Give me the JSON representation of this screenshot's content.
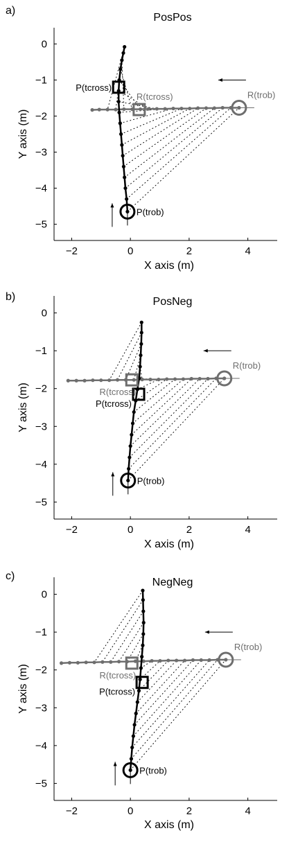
{
  "colors": {
    "pedestrian": "#000000",
    "robot": "#6e6e6e",
    "axis": "#000000",
    "hatch": "#000000"
  },
  "chart_data": [
    {
      "type": "scatter",
      "panel_letter": "a)",
      "title": "PosPos",
      "xlabel": "X axis (m)",
      "ylabel": "Y axis (m)",
      "xlim": [
        -2.6,
        5.0
      ],
      "ylim": [
        -5.45,
        0.45
      ],
      "xticks": [
        -2,
        0,
        2,
        4
      ],
      "yticks": [
        0,
        -1,
        -2,
        -3,
        -4,
        -5
      ],
      "pedestrian": {
        "points": [
          [
            -0.1,
            -4.65
          ],
          [
            -0.13,
            -4.3
          ],
          [
            -0.17,
            -4.0
          ],
          [
            -0.2,
            -3.7
          ],
          [
            -0.23,
            -3.4
          ],
          [
            -0.26,
            -3.1
          ],
          [
            -0.29,
            -2.8
          ],
          [
            -0.32,
            -2.5
          ],
          [
            -0.35,
            -2.2
          ],
          [
            -0.38,
            -1.9
          ],
          [
            -0.4,
            -1.6
          ],
          [
            -0.4,
            -1.3
          ],
          [
            -0.38,
            -1.0
          ],
          [
            -0.34,
            -0.7
          ],
          [
            -0.29,
            -0.45
          ],
          [
            -0.24,
            -0.25
          ],
          [
            -0.2,
            -0.08
          ]
        ],
        "start": [
          -0.1,
          -4.65
        ],
        "cross": [
          -0.4,
          -1.2
        ],
        "start_label": "P(trob)",
        "cross_label": "P(tcross)"
      },
      "robot": {
        "points": [
          [
            3.7,
            -1.77
          ],
          [
            3.42,
            -1.77
          ],
          [
            3.14,
            -1.77
          ],
          [
            2.86,
            -1.78
          ],
          [
            2.58,
            -1.78
          ],
          [
            2.3,
            -1.78
          ],
          [
            2.02,
            -1.79
          ],
          [
            1.74,
            -1.79
          ],
          [
            1.46,
            -1.79
          ],
          [
            1.18,
            -1.8
          ],
          [
            0.9,
            -1.8
          ],
          [
            0.62,
            -1.8
          ],
          [
            0.34,
            -1.81
          ],
          [
            0.06,
            -1.81
          ],
          [
            -0.22,
            -1.81
          ],
          [
            -0.5,
            -1.82
          ],
          [
            -0.78,
            -1.82
          ],
          [
            -1.06,
            -1.82
          ],
          [
            -1.3,
            -1.83
          ]
        ],
        "start": [
          3.7,
          -1.77
        ],
        "cross": [
          0.3,
          -1.82
        ],
        "start_label": "R(trob)",
        "cross_label": "R(tcross)"
      },
      "hatch_pairs": 14
    },
    {
      "type": "scatter",
      "panel_letter": "b)",
      "title": "PosNeg",
      "xlabel": "X axis (m)",
      "ylabel": "Y axis (m)",
      "xlim": [
        -2.6,
        5.0
      ],
      "ylim": [
        -5.45,
        0.45
      ],
      "xticks": [
        -2,
        0,
        2,
        4
      ],
      "yticks": [
        0,
        -1,
        -2,
        -3,
        -4,
        -5
      ],
      "pedestrian": {
        "points": [
          [
            -0.08,
            -4.43
          ],
          [
            -0.06,
            -4.12
          ],
          [
            -0.03,
            -3.82
          ],
          [
            0.0,
            -3.52
          ],
          [
            0.04,
            -3.22
          ],
          [
            0.08,
            -2.92
          ],
          [
            0.12,
            -2.62
          ],
          [
            0.18,
            -2.32
          ],
          [
            0.24,
            -2.02
          ],
          [
            0.3,
            -1.72
          ],
          [
            0.33,
            -1.42
          ],
          [
            0.35,
            -1.12
          ],
          [
            0.37,
            -0.82
          ],
          [
            0.38,
            -0.52
          ],
          [
            0.38,
            -0.25
          ]
        ],
        "start": [
          -0.08,
          -4.43
        ],
        "cross": [
          0.28,
          -2.15
        ],
        "start_label": "P(trob)",
        "cross_label": "P(tcross)"
      },
      "robot": {
        "points": [
          [
            3.2,
            -1.73
          ],
          [
            2.92,
            -1.73
          ],
          [
            2.64,
            -1.74
          ],
          [
            2.36,
            -1.74
          ],
          [
            2.08,
            -1.74
          ],
          [
            1.8,
            -1.75
          ],
          [
            1.52,
            -1.75
          ],
          [
            1.24,
            -1.75
          ],
          [
            0.96,
            -1.76
          ],
          [
            0.68,
            -1.76
          ],
          [
            0.4,
            -1.76
          ],
          [
            0.12,
            -1.77
          ],
          [
            -0.16,
            -1.77
          ],
          [
            -0.44,
            -1.77
          ],
          [
            -0.72,
            -1.78
          ],
          [
            -1.0,
            -1.78
          ],
          [
            -1.28,
            -1.78
          ],
          [
            -1.56,
            -1.79
          ],
          [
            -1.84,
            -1.79
          ],
          [
            -2.12,
            -1.79
          ]
        ],
        "start": [
          3.2,
          -1.73
        ],
        "cross": [
          0.05,
          -1.77
        ],
        "start_label": "R(trob)",
        "cross_label": "R(tcross)"
      },
      "hatch_pairs": 14
    },
    {
      "type": "scatter",
      "panel_letter": "c)",
      "title": "NegNeg",
      "xlabel": "X axis (m)",
      "ylabel": "Y axis (m)",
      "xlim": [
        -2.6,
        5.0
      ],
      "ylim": [
        -5.45,
        0.45
      ],
      "xticks": [
        -2,
        0,
        2,
        4
      ],
      "yticks": [
        0,
        -1,
        -2,
        -3,
        -4,
        -5
      ],
      "pedestrian": {
        "points": [
          [
            0.0,
            -4.65
          ],
          [
            0.03,
            -4.35
          ],
          [
            0.06,
            -4.05
          ],
          [
            0.1,
            -3.75
          ],
          [
            0.14,
            -3.45
          ],
          [
            0.19,
            -3.15
          ],
          [
            0.24,
            -2.85
          ],
          [
            0.29,
            -2.55
          ],
          [
            0.33,
            -2.25
          ],
          [
            0.36,
            -1.95
          ],
          [
            0.39,
            -1.65
          ],
          [
            0.42,
            -1.35
          ],
          [
            0.44,
            -1.05
          ],
          [
            0.45,
            -0.75
          ],
          [
            0.44,
            -0.45
          ],
          [
            0.43,
            -0.15
          ],
          [
            0.42,
            0.1
          ]
        ],
        "start": [
          0.0,
          -4.65
        ],
        "cross": [
          0.4,
          -2.33
        ],
        "start_label": "P(trob)",
        "cross_label": "P(tcross)"
      },
      "robot": {
        "points": [
          [
            3.25,
            -1.73
          ],
          [
            2.97,
            -1.73
          ],
          [
            2.69,
            -1.74
          ],
          [
            2.41,
            -1.74
          ],
          [
            2.13,
            -1.74
          ],
          [
            1.85,
            -1.75
          ],
          [
            1.57,
            -1.75
          ],
          [
            1.29,
            -1.75
          ],
          [
            1.01,
            -1.76
          ],
          [
            0.73,
            -1.76
          ],
          [
            0.45,
            -1.77
          ],
          [
            0.17,
            -1.77
          ],
          [
            -0.11,
            -1.78
          ],
          [
            -0.39,
            -1.78
          ],
          [
            -0.67,
            -1.79
          ],
          [
            -0.95,
            -1.79
          ],
          [
            -1.23,
            -1.8
          ],
          [
            -1.51,
            -1.8
          ],
          [
            -1.79,
            -1.81
          ],
          [
            -2.07,
            -1.81
          ],
          [
            -2.35,
            -1.82
          ]
        ],
        "start": [
          3.25,
          -1.73
        ],
        "cross": [
          0.05,
          -1.82
        ],
        "start_label": "R(trob)",
        "cross_label": "R(tcross)"
      },
      "hatch_pairs": 14
    }
  ]
}
